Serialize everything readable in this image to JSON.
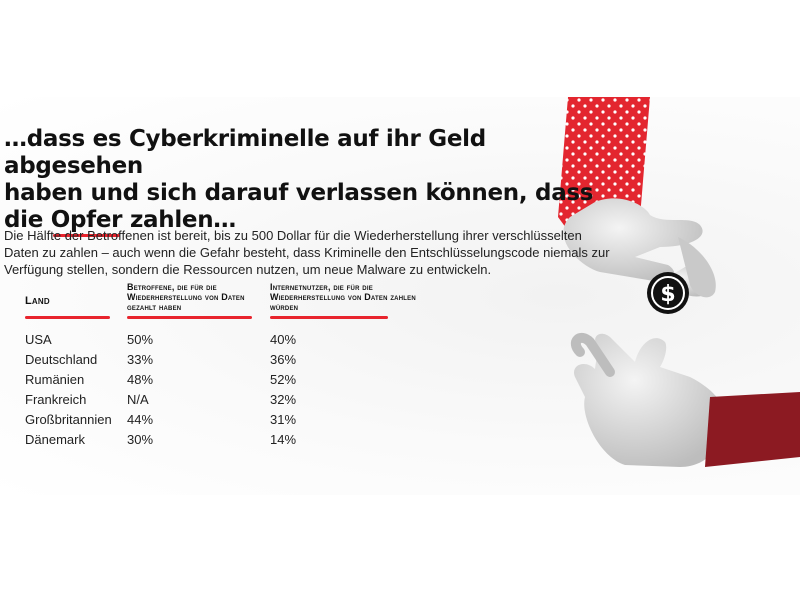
{
  "headline": {
    "line1": "…dass es Cyberkriminelle auf ihr Geld abgesehen",
    "line2": "haben und sich darauf verlassen können, dass",
    "line3_pre": "die ",
    "line3_underlined": "Opfer",
    "line3_post": " zahlen…"
  },
  "intro": "Die Hälfte der Betroffenen ist bereit, bis zu 500 Dollar für die Wiederherstellung ihrer verschlüsselten Daten zu zahlen – auch wenn die Gefahr besteht, dass Kriminelle den Entschlüsselungscode niemals zur Verfügung stellen, sondern die Ressourcen nutzen, um neue Malware zu entwickeln.",
  "table": {
    "headers": {
      "land": "Land",
      "paid": "Betroffene, die für die Wiederherstellung von Daten gezahlt haben",
      "would_pay": "Internetnutzer, die für die Wiederherstellung von Daten zahlen würden"
    },
    "rows": [
      {
        "land": "USA",
        "paid": "50%",
        "would_pay": "40%"
      },
      {
        "land": "Deutschland",
        "paid": "33%",
        "would_pay": "36%"
      },
      {
        "land": "Rumänien",
        "paid": "48%",
        "would_pay": "52%"
      },
      {
        "land": "Frankreich",
        "paid": "N/A",
        "would_pay": "32%"
      },
      {
        "land": "Großbritannien",
        "paid": "44%",
        "would_pay": "31%"
      },
      {
        "land": "Dänemark",
        "paid": "30%",
        "would_pay": "14%"
      }
    ]
  },
  "illustration": {
    "coin_symbol": "$",
    "icons": [
      "hand-with-coin-icon",
      "receiving-hand-icon",
      "dollar-coin-icon"
    ],
    "colors": {
      "accent": "#e8242d",
      "sleeve_dark": "#8c1a22",
      "glove": "#dcdcdc"
    }
  }
}
